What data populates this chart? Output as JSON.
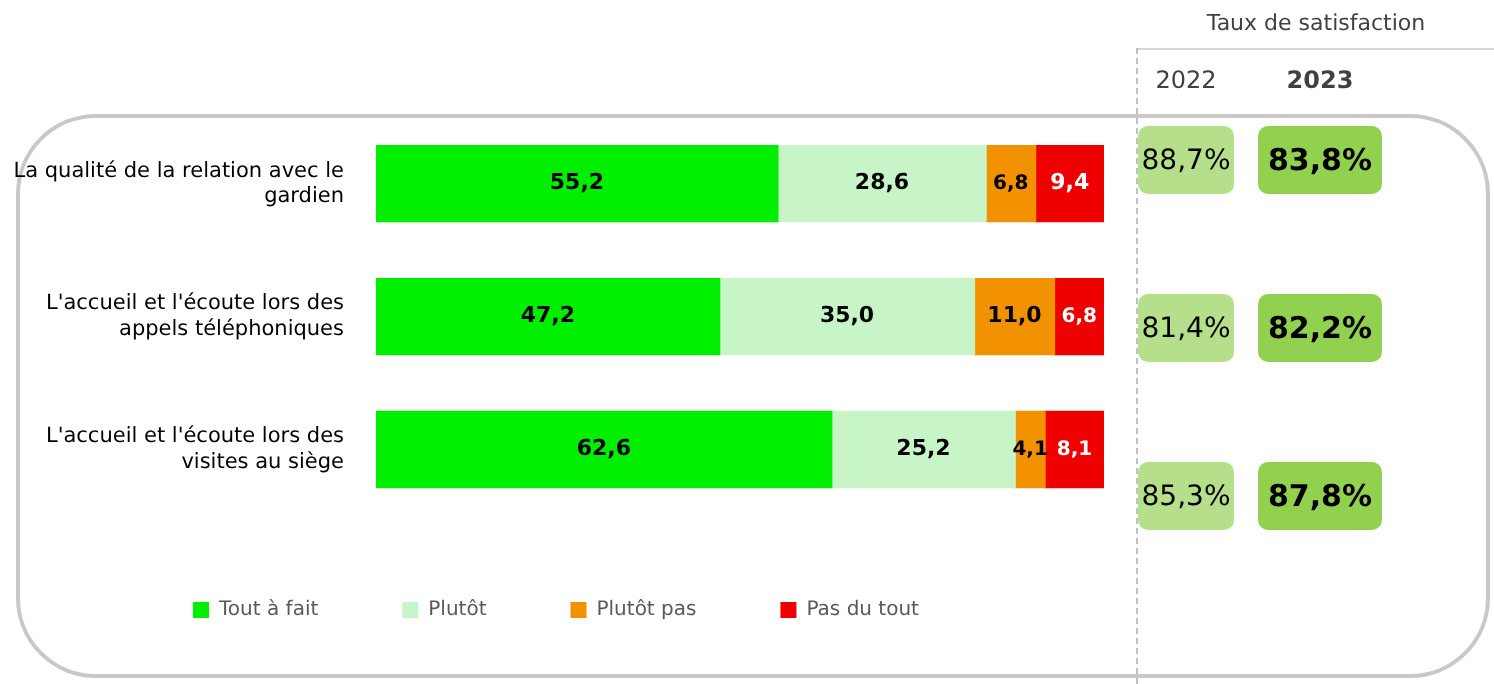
{
  "chart_data": [
    {
      "type": "bar",
      "orientation": "horizontal",
      "stacked": true,
      "legend": "bottom",
      "categories": [
        "La qualité de la relation avec le gardien",
        "L'accueil et l'écoute lors des appels téléphoniques",
        "L'accueil et l'écoute lors des visites au siège"
      ],
      "xlim": [
        0,
        100
      ],
      "series": [
        {
          "name": "Tout à fait",
          "color": "#00ee00",
          "values": [
            55.2,
            47.2,
            62.6
          ],
          "value_labels": [
            "55,2",
            "47,2",
            "62,6"
          ]
        },
        {
          "name": "Plutôt",
          "color": "#c8f5c8",
          "values": [
            28.6,
            35.0,
            25.2
          ],
          "value_labels": [
            "28,6",
            "35,0",
            "25,2"
          ]
        },
        {
          "name": "Plutôt pas",
          "color": "#f39200",
          "values": [
            6.8,
            11.0,
            4.1
          ],
          "value_labels": [
            "6,8",
            "11,0",
            "4,1"
          ]
        },
        {
          "name": "Pas du tout",
          "color": "#ee0000",
          "values": [
            9.4,
            6.8,
            8.1
          ],
          "value_labels": [
            "9,4",
            "6,8",
            "8,1"
          ]
        }
      ]
    },
    {
      "type": "other",
      "title": "Taux de satisfaction",
      "categories": [
        "2022",
        "2023"
      ],
      "cell_labels": [
        [
          "88,7%",
          "83,8%"
        ],
        [
          "81,4%",
          "82,2%"
        ],
        [
          "85,3%",
          "87,8%"
        ]
      ],
      "colors": [
        "#b5df8a",
        "#92d050"
      ]
    }
  ]
}
